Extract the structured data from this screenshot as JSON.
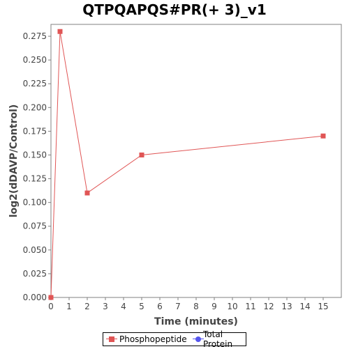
{
  "chart_data": {
    "type": "line",
    "title": "QTPQAPQS#PR(+ 3)_v1",
    "xlabel": "Time (minutes)",
    "ylabel": "log2(dDAVP/Control)",
    "xlim": [
      0,
      16
    ],
    "ylim": [
      0,
      0.2875
    ],
    "x_ticks": [
      0,
      1,
      2,
      3,
      4,
      5,
      6,
      7,
      8,
      9,
      10,
      11,
      12,
      13,
      14,
      15
    ],
    "y_ticks": [
      "0.000",
      "0.025",
      "0.050",
      "0.075",
      "0.100",
      "0.125",
      "0.150",
      "0.175",
      "0.200",
      "0.225",
      "0.250",
      "0.275"
    ],
    "grid": false,
    "legend_position": "bottom",
    "series": [
      {
        "name": "Phosphopeptide",
        "color": "#e05555",
        "marker": "square",
        "x": [
          0,
          0.5,
          2,
          5,
          15
        ],
        "y": [
          0.0,
          0.28,
          0.11,
          0.15,
          0.17
        ]
      },
      {
        "name": "Total Protein",
        "color": "#5555ee",
        "marker": "circle",
        "x": [],
        "y": []
      }
    ]
  }
}
